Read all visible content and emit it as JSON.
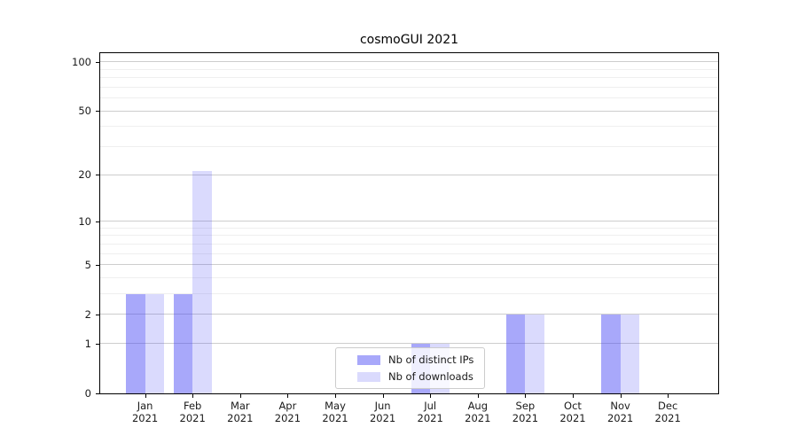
{
  "chart_data": {
    "type": "bar",
    "title": "cosmoGUI 2021",
    "categories": [
      "Jan",
      "Feb",
      "Mar",
      "Apr",
      "May",
      "Jun",
      "Jul",
      "Aug",
      "Sep",
      "Oct",
      "Nov",
      "Dec"
    ],
    "year_suffix": "2021",
    "series": [
      {
        "name": "Nb of distinct IPs",
        "color": "rgba(70,70,245,0.47)",
        "values": [
          3,
          3,
          0,
          0,
          0,
          0,
          1,
          0,
          2,
          0,
          2,
          0
        ]
      },
      {
        "name": "Nb of downloads",
        "color": "rgba(70,70,245,0.20)",
        "values": [
          3,
          21,
          0,
          0,
          0,
          0,
          1,
          0,
          2,
          0,
          2,
          0
        ]
      }
    ],
    "yscale": "log1p",
    "ylim": [
      0,
      113
    ],
    "y_ticks": [
      0,
      1,
      2,
      5,
      10,
      20,
      50,
      100
    ],
    "y_minor_gridlines": [
      3,
      4,
      6,
      7,
      8,
      9,
      30,
      40,
      60,
      70,
      80,
      90
    ],
    "grid": "horizontal",
    "legend_position": "lower center",
    "xlabel": "",
    "ylabel": "",
    "colors": {
      "major_grid": "#cdcdcd",
      "minor_grid": "#efefef",
      "axis": "#000000",
      "text": "#1a1a1a",
      "legend_border": "#cccccc",
      "background": "#ffffff"
    }
  }
}
